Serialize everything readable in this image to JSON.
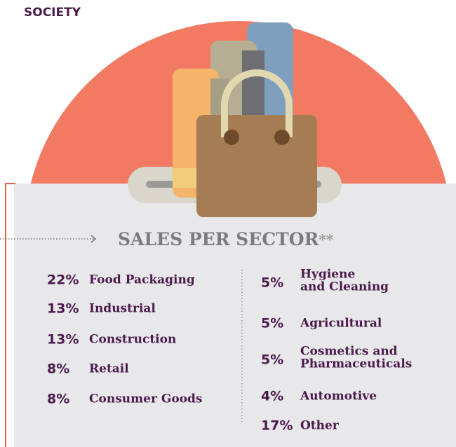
{
  "header": {
    "section": "SOCIETY"
  },
  "title": {
    "text": "SALES PER SECTOR",
    "note": "**"
  },
  "columns": [
    [
      {
        "value": "22%",
        "label": [
          "Food Packaging"
        ]
      },
      {
        "value": "13%",
        "label": [
          "Industrial"
        ]
      },
      {
        "value": "13%",
        "label": [
          "Construction"
        ]
      },
      {
        "value": "8%",
        "label": [
          "Retail"
        ]
      },
      {
        "value": "8%",
        "label": [
          "Consumer Goods"
        ]
      }
    ],
    [
      {
        "value": "5%",
        "label": [
          "Hygiene",
          "and Cleaning"
        ]
      },
      {
        "value": "5%",
        "label": [
          "Agricultural"
        ]
      },
      {
        "value": "5%",
        "label": [
          "Cosmetics and",
          "Pharmaceuticals"
        ]
      },
      {
        "value": "4%",
        "label": [
          "Automotive"
        ]
      },
      {
        "value": "17%",
        "label": [
          "Other"
        ]
      }
    ]
  ]
}
